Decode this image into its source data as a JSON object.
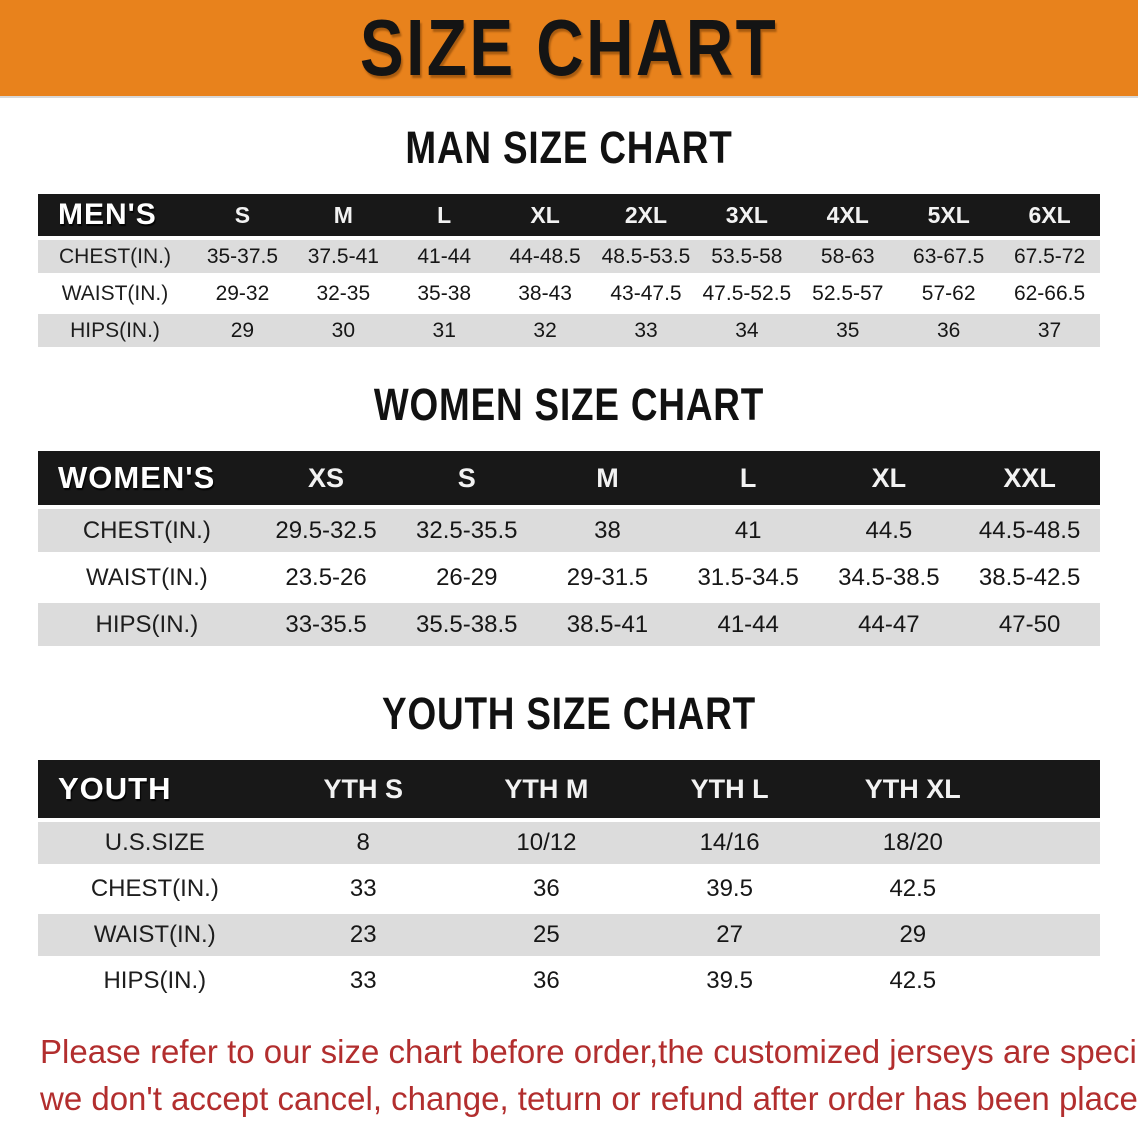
{
  "theme": {
    "banner_orange": "#e8821c",
    "header_black": "#181818",
    "row_grey": "#dcdcdc",
    "disclaimer_red": "#b22e2e"
  },
  "banner": {
    "title": "SIZE CHART"
  },
  "sections": [
    {
      "id": "men",
      "title": "MAN SIZE CHART",
      "label_header": "MEN'S",
      "columns": [
        "S",
        "M",
        "L",
        "XL",
        "2XL",
        "3XL",
        "4XL",
        "5XL",
        "6XL"
      ],
      "rows": [
        {
          "label": "CHEST(IN.)",
          "values": [
            "35-37.5",
            "37.5-41",
            "41-44",
            "44-48.5",
            "48.5-53.5",
            "53.5-58",
            "58-63",
            "63-67.5",
            "67.5-72"
          ]
        },
        {
          "label": "WAIST(IN.)",
          "values": [
            "29-32",
            "32-35",
            "35-38",
            "38-43",
            "43-47.5",
            "47.5-52.5",
            "52.5-57",
            "57-62",
            "62-66.5"
          ]
        },
        {
          "label": "HIPS(IN.)",
          "values": [
            "29",
            "30",
            "31",
            "32",
            "33",
            "34",
            "35",
            "36",
            "37"
          ]
        }
      ]
    },
    {
      "id": "women",
      "title": "WOMEN SIZE CHART",
      "label_header": "WOMEN'S",
      "columns": [
        "XS",
        "S",
        "M",
        "L",
        "XL",
        "XXL"
      ],
      "rows": [
        {
          "label": "CHEST(IN.)",
          "values": [
            "29.5-32.5",
            "32.5-35.5",
            "38",
            "41",
            "44.5",
            "44.5-48.5"
          ]
        },
        {
          "label": "WAIST(IN.)",
          "values": [
            "23.5-26",
            "26-29",
            "29-31.5",
            "31.5-34.5",
            "34.5-38.5",
            "38.5-42.5"
          ]
        },
        {
          "label": "HIPS(IN.)",
          "values": [
            "33-35.5",
            "35.5-38.5",
            "38.5-41",
            "41-44",
            "44-47",
            "47-50"
          ]
        }
      ]
    },
    {
      "id": "youth",
      "title": "YOUTH SIZE CHART",
      "label_header": "YOUTH",
      "columns": [
        "YTH S",
        "YTH M",
        "YTH L",
        "YTH XL"
      ],
      "rows": [
        {
          "label": "U.S.SIZE",
          "values": [
            "8",
            "10/12",
            "14/16",
            "18/20"
          ]
        },
        {
          "label": "CHEST(IN.)",
          "values": [
            "33",
            "36",
            "39.5",
            "42.5"
          ]
        },
        {
          "label": "WAIST(IN.)",
          "values": [
            "23",
            "25",
            "27",
            "29"
          ]
        },
        {
          "label": "HIPS(IN.)",
          "values": [
            "33",
            "36",
            "39.5",
            "42.5"
          ]
        }
      ]
    }
  ],
  "disclaimer": {
    "line1": "Please refer to our size chart before order,the customized jerseys are special products,",
    "line2": "we don't accept cancel, change, teturn or refund after order has been placed!"
  }
}
